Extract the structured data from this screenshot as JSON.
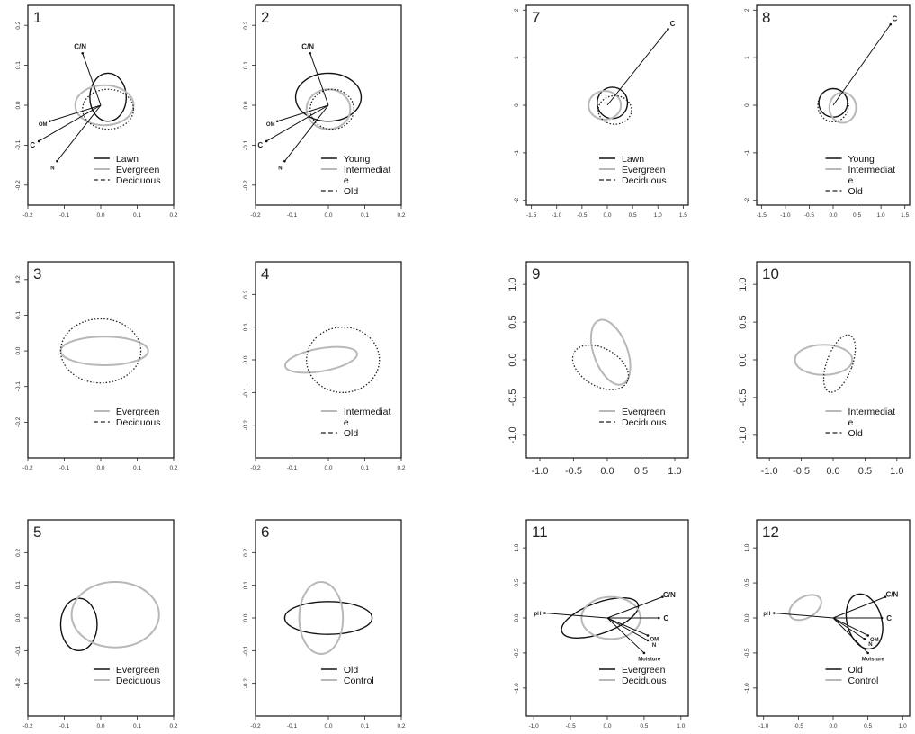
{
  "chart_data": [
    {
      "panel": "1",
      "type": "scatter",
      "xlim": [
        -0.2,
        0.2
      ],
      "ylim": [
        -0.25,
        0.25
      ],
      "xticks": [
        "-0.2",
        "-0.1",
        "0.0",
        "0.1",
        "0.2"
      ],
      "yticks": [
        "-0.2",
        "-0.1",
        "0.0",
        "0.1",
        "0.2"
      ],
      "vectors": [
        {
          "label": "C/N",
          "x": -0.05,
          "y": 0.13
        },
        {
          "label": "OM",
          "x": -0.14,
          "y": -0.04
        },
        {
          "label": "C",
          "x": -0.17,
          "y": -0.09
        },
        {
          "label": "N",
          "x": -0.12,
          "y": -0.14
        }
      ],
      "ellipses": [
        {
          "series": "Lawn",
          "cx": 0.02,
          "cy": 0.02,
          "rx": 0.05,
          "ry": 0.06,
          "angle": 0
        },
        {
          "series": "Evergreen",
          "cx": 0.01,
          "cy": 0.0,
          "rx": 0.08,
          "ry": 0.05,
          "angle": 0
        },
        {
          "series": "Deciduous",
          "cx": 0.02,
          "cy": -0.01,
          "rx": 0.07,
          "ry": 0.05,
          "angle": 0
        }
      ],
      "legend": [
        "Lawn",
        "Evergreen",
        "Deciduous"
      ]
    },
    {
      "panel": "2",
      "type": "scatter",
      "xlim": [
        -0.2,
        0.2
      ],
      "ylim": [
        -0.25,
        0.25
      ],
      "xticks": [
        "-0.2",
        "-0.1",
        "0.0",
        "0.1",
        "0.2"
      ],
      "yticks": [
        "-0.2",
        "-0.1",
        "0.0",
        "0.1",
        "0.2"
      ],
      "vectors": [
        {
          "label": "C/N",
          "x": -0.05,
          "y": 0.13
        },
        {
          "label": "OM",
          "x": -0.14,
          "y": -0.04
        },
        {
          "label": "C",
          "x": -0.17,
          "y": -0.09
        },
        {
          "label": "N",
          "x": -0.12,
          "y": -0.14
        }
      ],
      "ellipses": [
        {
          "series": "Young",
          "cx": 0.0,
          "cy": 0.02,
          "rx": 0.09,
          "ry": 0.06,
          "angle": 0
        },
        {
          "series": "Intermediate",
          "cx": 0.0,
          "cy": -0.01,
          "rx": 0.06,
          "ry": 0.05,
          "angle": 0
        },
        {
          "series": "Old",
          "cx": 0.01,
          "cy": -0.01,
          "rx": 0.06,
          "ry": 0.05,
          "angle": 0
        }
      ],
      "legend": [
        "Young",
        "Intermediat",
        "e",
        "Old"
      ]
    },
    {
      "panel": "7",
      "type": "scatter",
      "xlim": [
        -1.6,
        1.6
      ],
      "ylim": [
        -2.1,
        2.1
      ],
      "xticks": [
        "-1.5",
        "-1.0",
        "-0.5",
        "0.0",
        "0.5",
        "1.0",
        "1.5"
      ],
      "yticks": [
        "-2",
        "-1",
        "0",
        "1",
        "2"
      ],
      "vectors": [
        {
          "label": "C",
          "x": 1.2,
          "y": 1.6
        }
      ],
      "ellipses": [
        {
          "series": "Lawn",
          "cx": 0.1,
          "cy": 0.05,
          "rx": 0.3,
          "ry": 0.33,
          "angle": 0
        },
        {
          "series": "Evergreen",
          "cx": -0.05,
          "cy": 0.0,
          "rx": 0.32,
          "ry": 0.3,
          "angle": 0
        },
        {
          "series": "Deciduous",
          "cx": 0.15,
          "cy": -0.1,
          "rx": 0.33,
          "ry": 0.3,
          "angle": 0
        }
      ],
      "legend": [
        "Lawn",
        "Evergreen",
        "Deciduous"
      ]
    },
    {
      "panel": "8",
      "type": "scatter",
      "xlim": [
        -1.6,
        1.6
      ],
      "ylim": [
        -2.1,
        2.1
      ],
      "xticks": [
        "-1.5",
        "-1.0",
        "-0.5",
        "0.0",
        "0.5",
        "1.0",
        "1.5"
      ],
      "yticks": [
        "-2",
        "-1",
        "0",
        "1",
        "2"
      ],
      "vectors": [
        {
          "label": "C",
          "x": 1.2,
          "y": 1.7
        }
      ],
      "ellipses": [
        {
          "series": "Young",
          "cx": 0.0,
          "cy": 0.05,
          "rx": 0.3,
          "ry": 0.3,
          "angle": 0
        },
        {
          "series": "Intermediate",
          "cx": 0.2,
          "cy": -0.05,
          "rx": 0.28,
          "ry": 0.32,
          "angle": 0
        },
        {
          "series": "Old",
          "cx": 0.0,
          "cy": 0.0,
          "rx": 0.32,
          "ry": 0.35,
          "angle": 0
        }
      ],
      "legend": [
        "Young",
        "Intermediat",
        "e",
        "Old"
      ]
    },
    {
      "panel": "3",
      "type": "scatter",
      "xlim": [
        -0.2,
        0.2
      ],
      "ylim": [
        -0.3,
        0.25
      ],
      "xticks": [
        "-0.2",
        "-0.1",
        "0.0",
        "0.1",
        "0.2"
      ],
      "yticks": [
        "-0.2",
        "-0.1",
        "0.0",
        "0.1",
        "0.2"
      ],
      "vectors": [],
      "ellipses": [
        {
          "series": "Evergreen",
          "cx": 0.01,
          "cy": 0.0,
          "rx": 0.12,
          "ry": 0.04,
          "angle": 0
        },
        {
          "series": "Deciduous",
          "cx": 0.0,
          "cy": 0.0,
          "rx": 0.11,
          "ry": 0.09,
          "angle": 0
        }
      ],
      "legend": [
        "Evergreen",
        "Deciduous"
      ]
    },
    {
      "panel": "4",
      "type": "scatter",
      "xlim": [
        -0.2,
        0.2
      ],
      "ylim": [
        -0.3,
        0.3
      ],
      "xticks": [
        "-0.2",
        "-0.1",
        "0.0",
        "0.1",
        "0.2"
      ],
      "yticks": [
        "-0.2",
        "-0.1",
        "0.0",
        "0.1",
        "0.2"
      ],
      "vectors": [],
      "ellipses": [
        {
          "series": "Intermediate",
          "cx": -0.02,
          "cy": 0.0,
          "rx": 0.1,
          "ry": 0.035,
          "angle": 10
        },
        {
          "series": "Old",
          "cx": 0.04,
          "cy": 0.0,
          "rx": 0.1,
          "ry": 0.1,
          "angle": 0
        }
      ],
      "legend": [
        "Intermediat",
        "e",
        "Old"
      ]
    },
    {
      "panel": "9",
      "type": "scatter",
      "xlim": [
        -1.2,
        1.2
      ],
      "ylim": [
        -1.3,
        1.3
      ],
      "xticks": [
        "-1.0",
        "-0.5",
        "0.0",
        "0.5",
        "1.0"
      ],
      "yticks": [
        "-1.0",
        "-0.5",
        "0.0",
        "0.5",
        "1.0"
      ],
      "vectors": [],
      "ellipses": [
        {
          "series": "Evergreen",
          "cx": 0.05,
          "cy": 0.1,
          "rx": 0.25,
          "ry": 0.45,
          "angle": 20
        },
        {
          "series": "Deciduous",
          "cx": -0.1,
          "cy": -0.1,
          "rx": 0.45,
          "ry": 0.25,
          "angle": -30
        }
      ],
      "legend": [
        "Evergreen",
        "Deciduous"
      ]
    },
    {
      "panel": "10",
      "type": "scatter",
      "xlim": [
        -1.2,
        1.2
      ],
      "ylim": [
        -1.3,
        1.3
      ],
      "xticks": [
        "-1.0",
        "-0.5",
        "0.0",
        "0.5",
        "1.0"
      ],
      "yticks": [
        "-1.0",
        "-0.5",
        "0.0",
        "0.5",
        "1.0"
      ],
      "vectors": [],
      "ellipses": [
        {
          "series": "Intermediate",
          "cx": -0.15,
          "cy": 0.0,
          "rx": 0.45,
          "ry": 0.2,
          "angle": 0
        },
        {
          "series": "Old",
          "cx": 0.1,
          "cy": -0.05,
          "rx": 0.2,
          "ry": 0.4,
          "angle": -20
        }
      ],
      "legend": [
        "Intermediat",
        "e",
        "Old"
      ]
    },
    {
      "panel": "5",
      "type": "scatter",
      "xlim": [
        -0.2,
        0.2
      ],
      "ylim": [
        -0.3,
        0.3
      ],
      "xticks": [
        "-0.2",
        "-0.1",
        "0.0",
        "0.1",
        "0.2"
      ],
      "yticks": [
        "-0.2",
        "-0.1",
        "0.0",
        "0.1",
        "0.2"
      ],
      "vectors": [],
      "ellipses": [
        {
          "series": "Evergreen",
          "cx": -0.06,
          "cy": -0.02,
          "rx": 0.05,
          "ry": 0.08,
          "angle": 0
        },
        {
          "series": "Deciduous",
          "cx": 0.04,
          "cy": 0.01,
          "rx": 0.12,
          "ry": 0.1,
          "angle": 0
        }
      ],
      "legend": [
        "Evergreen",
        "Deciduous"
      ]
    },
    {
      "panel": "6",
      "type": "scatter",
      "xlim": [
        -0.2,
        0.2
      ],
      "ylim": [
        -0.3,
        0.3
      ],
      "xticks": [
        "-0.2",
        "-0.1",
        "0.0",
        "0.1",
        "0.2"
      ],
      "yticks": [
        "-0.2",
        "-0.1",
        "0.0",
        "0.1",
        "0.2"
      ],
      "vectors": [],
      "ellipses": [
        {
          "series": "Old",
          "cx": 0.0,
          "cy": 0.0,
          "rx": 0.12,
          "ry": 0.05,
          "angle": 0
        },
        {
          "series": "Control",
          "cx": -0.02,
          "cy": 0.0,
          "rx": 0.06,
          "ry": 0.11,
          "angle": 0
        }
      ],
      "legend": [
        "Old",
        "Control"
      ]
    },
    {
      "panel": "11",
      "type": "scatter",
      "xlim": [
        -1.1,
        1.1
      ],
      "ylim": [
        -1.4,
        1.4
      ],
      "xticks": [
        "-1.0",
        "-0.5",
        "0.0",
        "0.5",
        "1.0"
      ],
      "yticks": [
        "-1.0",
        "-0.5",
        "0.0",
        "0.5",
        "1.0"
      ],
      "vectors": [
        {
          "label": "C/N",
          "x": 0.75,
          "y": 0.3
        },
        {
          "label": "pH",
          "x": -0.85,
          "y": 0.07
        },
        {
          "label": "C",
          "x": 0.7,
          "y": 0.0
        },
        {
          "label": "OM",
          "x": 0.55,
          "y": -0.25
        },
        {
          "label": "N",
          "x": 0.55,
          "y": -0.32
        },
        {
          "label": "Moisture",
          "x": 0.5,
          "y": -0.5
        }
      ],
      "ellipses": [
        {
          "series": "Evergreen",
          "cx": -0.1,
          "cy": 0.0,
          "rx": 0.55,
          "ry": 0.22,
          "angle": 20
        },
        {
          "series": "Deciduous",
          "cx": 0.05,
          "cy": 0.0,
          "rx": 0.4,
          "ry": 0.3,
          "angle": 0
        }
      ],
      "legend": [
        "Evergreen",
        "Deciduous"
      ]
    },
    {
      "panel": "12",
      "type": "scatter",
      "xlim": [
        -1.1,
        1.1
      ],
      "ylim": [
        -1.4,
        1.4
      ],
      "xticks": [
        "-1.0",
        "-0.5",
        "0.0",
        "0.5",
        "1.0"
      ],
      "yticks": [
        "-1.0",
        "-0.5",
        "0.0",
        "0.5",
        "1.0"
      ],
      "vectors": [
        {
          "label": "C/N",
          "x": 0.75,
          "y": 0.3
        },
        {
          "label": "pH",
          "x": -0.85,
          "y": 0.07
        },
        {
          "label": "C",
          "x": 0.7,
          "y": 0.0
        },
        {
          "label": "OM",
          "x": 0.5,
          "y": -0.25
        },
        {
          "label": "N",
          "x": 0.45,
          "y": -0.3
        },
        {
          "label": "Moisture",
          "x": 0.5,
          "y": -0.5
        }
      ],
      "ellipses": [
        {
          "series": "Old",
          "cx": 0.45,
          "cy": -0.05,
          "rx": 0.25,
          "ry": 0.4,
          "angle": 15
        },
        {
          "series": "Control",
          "cx": -0.4,
          "cy": 0.15,
          "rx": 0.25,
          "ry": 0.15,
          "angle": 30
        }
      ],
      "legend": [
        "Old",
        "Control"
      ]
    }
  ],
  "styles": {
    "black": "#111111",
    "gray": "#b8b8b8",
    "dotted": "#222222"
  }
}
